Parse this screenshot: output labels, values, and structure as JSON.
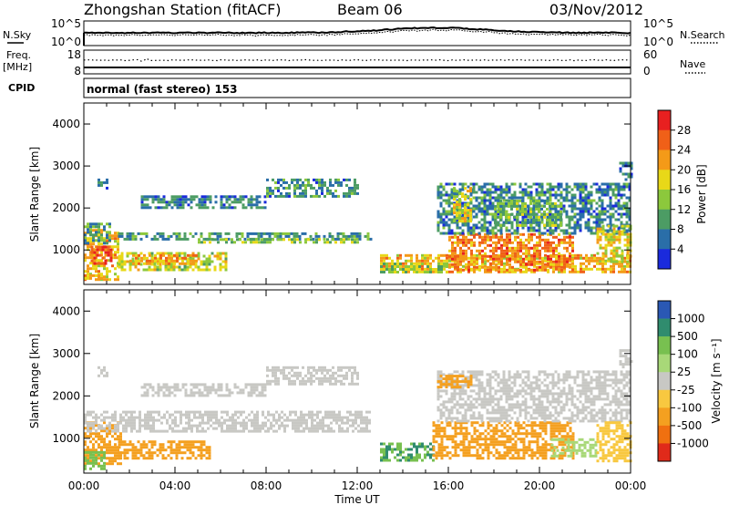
{
  "header": {
    "station": "Zhongshan Station (fitACF)",
    "beam": "Beam 06",
    "date": "03/Nov/2012"
  },
  "strip": {
    "nsky_label": "N.Sky",
    "nsearch_label": "N.Search",
    "freq_label_line1": "Freq.",
    "freq_label_line2": "[MHz]",
    "nave_label": "Nave",
    "cpid_label": "CPID",
    "cpid_value": "normal (fast stereo) 153",
    "noise_ticks_left": [
      "10^5",
      "10^0"
    ],
    "noise_ticks_right": [
      "10^5",
      "10^0"
    ],
    "freq_ticks": [
      "18",
      "8"
    ],
    "nave_ticks": [
      "60",
      "0"
    ]
  },
  "power_colorbar": {
    "label": "Power [dB]",
    "ticks": [
      "28",
      "24",
      "20",
      "16",
      "12",
      "8",
      "4"
    ],
    "colors": [
      "#e82020",
      "#f06018",
      "#f49a18",
      "#e8d818",
      "#8cc83c",
      "#4c9c64",
      "#2a6ea8",
      "#1a2adc"
    ]
  },
  "velocity_colorbar": {
    "label": "Velocity [m s⁻¹]",
    "ticks": [
      "1000",
      "500",
      "100",
      "25",
      "-25",
      "-100",
      "-500",
      "-1000"
    ],
    "colors": [
      "#2a58b4",
      "#308c6e",
      "#78c050",
      "#a8d878",
      "#c8c8c4",
      "#f8c840",
      "#f4a020",
      "#f07010",
      "#e02a1a"
    ]
  },
  "chart_data": [
    {
      "type": "heatmap",
      "ylabel": "Slant Range [km]",
      "y_ticks": [
        "1000",
        "2000",
        "3000",
        "4000"
      ],
      "ylim": [
        180,
        4500
      ],
      "xlim": [
        "00:00",
        "00:00"
      ],
      "colorbar": "Power [dB]",
      "echo_regions": [
        {
          "t0": 0.0,
          "t1": 1.5,
          "r0": 300,
          "r1": 1500,
          "v": 20
        },
        {
          "t0": 0.3,
          "t1": 1.2,
          "r0": 700,
          "r1": 1100,
          "v": 27
        },
        {
          "t0": 0.0,
          "t1": 0.8,
          "r0": 300,
          "r1": 420,
          "v": 22
        },
        {
          "t0": 1.5,
          "t1": 6.2,
          "r0": 550,
          "r1": 950,
          "v": 16
        },
        {
          "t0": 2.0,
          "t1": 5.0,
          "r0": 700,
          "r1": 900,
          "v": 22
        },
        {
          "t0": 0.0,
          "t1": 1.2,
          "r0": 1150,
          "r1": 1650,
          "v": 10
        },
        {
          "t0": 1.5,
          "t1": 12.6,
          "r0": 1230,
          "r1": 1420,
          "v": 9
        },
        {
          "t0": 5.0,
          "t1": 12.0,
          "r0": 1150,
          "r1": 1280,
          "v": 14
        },
        {
          "t0": 2.5,
          "t1": 8.0,
          "r0": 2000,
          "r1": 2300,
          "v": 7
        },
        {
          "t0": 8.0,
          "t1": 12.0,
          "r0": 2300,
          "r1": 2700,
          "v": 8
        },
        {
          "t0": 0.6,
          "t1": 1.0,
          "r0": 2500,
          "r1": 2700,
          "v": 6
        },
        {
          "t0": 13.0,
          "t1": 24.0,
          "r0": 500,
          "r1": 900,
          "v": 20
        },
        {
          "t0": 16.0,
          "t1": 21.5,
          "r0": 550,
          "r1": 1400,
          "v": 24
        },
        {
          "t0": 13.0,
          "t1": 16.0,
          "r0": 500,
          "r1": 700,
          "v": 14
        },
        {
          "t0": 15.5,
          "t1": 24.0,
          "r0": 1400,
          "r1": 2600,
          "v": 8
        },
        {
          "t0": 16.2,
          "t1": 17.0,
          "r0": 1700,
          "r1": 2500,
          "v": 18
        },
        {
          "t0": 18.0,
          "t1": 21.0,
          "r0": 1600,
          "r1": 2200,
          "v": 12
        },
        {
          "t0": 22.5,
          "t1": 24.0,
          "r0": 700,
          "r1": 1600,
          "v": 18
        },
        {
          "t0": 23.5,
          "t1": 24.0,
          "r0": 2700,
          "r1": 3100,
          "v": 6
        }
      ]
    },
    {
      "type": "heatmap",
      "ylabel": "Slant Range [km]",
      "xlabel": "Time UT",
      "x_ticks": [
        "00:00",
        "04:00",
        "08:00",
        "12:00",
        "16:00",
        "20:00",
        "00:00"
      ],
      "y_ticks": [
        "1000",
        "2000",
        "3000",
        "4000"
      ],
      "ylim": [
        180,
        4500
      ],
      "xlim": [
        "00:00",
        "00:00"
      ],
      "colorbar": "Velocity [m s⁻¹]",
      "echo_regions": [
        {
          "t0": 0.0,
          "t1": 1.6,
          "r0": 400,
          "r1": 1400,
          "v": -300
        },
        {
          "t0": 1.5,
          "t1": 5.5,
          "r0": 550,
          "r1": 950,
          "v": -200
        },
        {
          "t0": 0.0,
          "t1": 0.9,
          "r0": 300,
          "r1": 700,
          "v": 300
        },
        {
          "t0": 0.0,
          "t1": 12.6,
          "r0": 1150,
          "r1": 1650,
          "v": 0
        },
        {
          "t0": 2.5,
          "t1": 8.0,
          "r0": 2000,
          "r1": 2300,
          "v": 0
        },
        {
          "t0": 8.0,
          "t1": 12.0,
          "r0": 2300,
          "r1": 2700,
          "v": 0
        },
        {
          "t0": 0.6,
          "t1": 1.0,
          "r0": 2500,
          "r1": 2700,
          "v": 0
        },
        {
          "t0": 13.0,
          "t1": 15.3,
          "r0": 500,
          "r1": 900,
          "v": 500
        },
        {
          "t0": 15.3,
          "t1": 21.5,
          "r0": 550,
          "r1": 1400,
          "v": -200
        },
        {
          "t0": 15.5,
          "t1": 24.0,
          "r0": 1400,
          "r1": 2600,
          "v": 0
        },
        {
          "t0": 15.5,
          "t1": 17.0,
          "r0": 2200,
          "r1": 2500,
          "v": -200
        },
        {
          "t0": 20.5,
          "t1": 22.5,
          "r0": 550,
          "r1": 1000,
          "v": 60
        },
        {
          "t0": 22.5,
          "t1": 24.0,
          "r0": 450,
          "r1": 1400,
          "v": -60
        },
        {
          "t0": 23.5,
          "t1": 24.0,
          "r0": 2700,
          "r1": 3100,
          "v": 0
        }
      ]
    }
  ]
}
